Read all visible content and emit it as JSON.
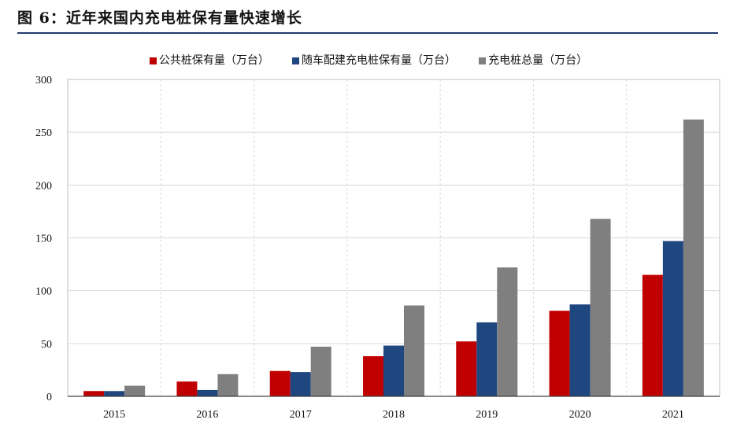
{
  "figure": {
    "title": "图 6：近年来国内充电桩保有量快速增长"
  },
  "chart_data": {
    "type": "bar",
    "categories": [
      "2015",
      "2016",
      "2017",
      "2018",
      "2019",
      "2020",
      "2021"
    ],
    "series": [
      {
        "name": "公共桩保有量（万台）",
        "color": "#c00000",
        "values": [
          5,
          14,
          24,
          38,
          52,
          81,
          115
        ]
      },
      {
        "name": "随车配建充电桩保有量（万台）",
        "color": "#1f477f",
        "values": [
          5,
          6,
          23,
          48,
          70,
          87,
          147
        ]
      },
      {
        "name": "充电桩总量（万台）",
        "color": "#7f7f7f",
        "values": [
          10,
          21,
          47,
          86,
          122,
          168,
          262
        ]
      }
    ],
    "ylim": [
      0,
      300
    ],
    "yticks": [
      "0",
      "50",
      "100",
      "150",
      "200",
      "250",
      "300"
    ],
    "legend_position": "top",
    "grid": true
  }
}
